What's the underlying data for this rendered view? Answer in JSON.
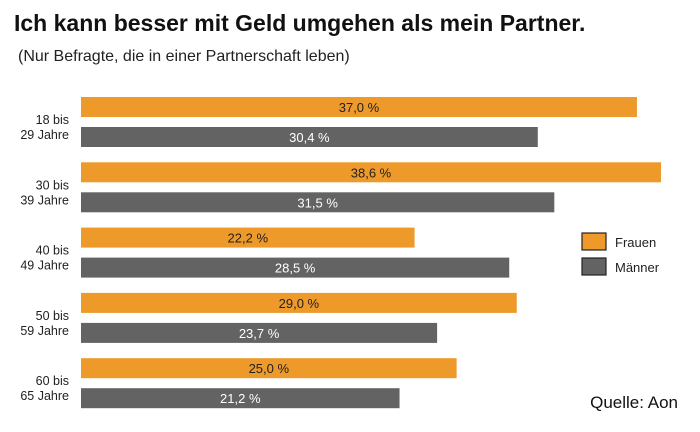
{
  "chart_data": {
    "type": "bar",
    "orientation": "horizontal",
    "title": "Ich kann besser mit Geld umgehen als mein Partner.",
    "subtitle": "(Nur Befragte, die in einer Partnerschaft leben)",
    "categories": [
      [
        "18 bis",
        "29 Jahre"
      ],
      [
        "30 bis",
        "39 Jahre"
      ],
      [
        "40 bis",
        "49 Jahre"
      ],
      [
        "50 bis",
        "59 Jahre"
      ],
      [
        "60 bis",
        "65 Jahre"
      ]
    ],
    "series": [
      {
        "name": "Frauen",
        "color": "#ED9A2A",
        "text_color": "#222222",
        "values": [
          37.0,
          38.6,
          22.2,
          29.0,
          25.0
        ],
        "labels": [
          "37,0 %",
          "38,6 %",
          "22,2 %",
          "29,0 %",
          "25,0 %"
        ]
      },
      {
        "name": "Männer",
        "color": "#636363",
        "text_color": "#ffffff",
        "values": [
          30.4,
          31.5,
          28.5,
          23.7,
          21.2
        ],
        "labels": [
          "30,4 %",
          "31,5 %",
          "28,5 %",
          "23,7 %",
          "21,2 %"
        ]
      }
    ],
    "xlim": [
      0,
      38.6
    ],
    "grid": false,
    "legend_position": "right",
    "source": "Quelle: Aon"
  }
}
